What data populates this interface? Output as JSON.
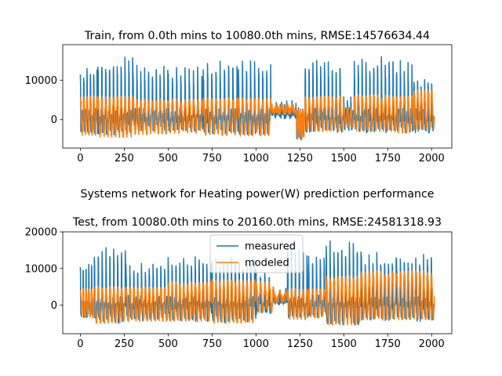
{
  "figure": {
    "suptitle": "Systems network for Heating power(W) prediction performance"
  },
  "chart_data": [
    {
      "type": "line",
      "title": "Train, from 0.0th mins to 10080.0th mins, RMSE:14576634.44",
      "xlabel": "",
      "ylabel": "",
      "xlim": [
        -100,
        2115
      ],
      "ylim": [
        -7200,
        19000
      ],
      "xticks": [
        0,
        250,
        500,
        750,
        1000,
        1250,
        1500,
        1750,
        2000
      ],
      "yticks": [
        0,
        10000
      ],
      "x_range": [
        0,
        2016
      ],
      "grid": false,
      "legend": false,
      "segments": [
        {
          "x0": 0,
          "x1": 100,
          "cycle": 19,
          "m_hi": 14000,
          "m_lo": -3800,
          "p_hi": 6000,
          "p_lo": -4000
        },
        {
          "x0": 100,
          "x1": 300,
          "cycle": 22,
          "m_hi": 16500,
          "m_lo": -4000,
          "p_hi": 6000,
          "p_lo": -4500
        },
        {
          "x0": 300,
          "x1": 500,
          "cycle": 22,
          "m_hi": 14000,
          "m_lo": -3000,
          "p_hi": 5200,
          "p_lo": -3800
        },
        {
          "x0": 500,
          "x1": 700,
          "cycle": 24,
          "m_hi": 13500,
          "m_lo": -3000,
          "p_hi": 5200,
          "p_lo": -3500
        },
        {
          "x0": 700,
          "x1": 900,
          "cycle": 24,
          "m_hi": 15000,
          "m_lo": -3500,
          "p_hi": 5500,
          "p_lo": -4000
        },
        {
          "x0": 900,
          "x1": 1085,
          "cycle": 23,
          "m_hi": 15500,
          "m_lo": -3800,
          "p_hi": 5500,
          "p_lo": -4200
        },
        {
          "x0": 1085,
          "x1": 1230,
          "cycle": 30,
          "m_hi": 5000,
          "m_lo": 1200,
          "p_hi": 4000,
          "p_lo": 1500
        },
        {
          "x0": 1230,
          "x1": 1280,
          "cycle": 12,
          "m_hi": 3000,
          "m_lo": -5800,
          "p_hi": 2500,
          "p_lo": -5000
        },
        {
          "x0": 1280,
          "x1": 1500,
          "cycle": 22,
          "m_hi": 15500,
          "m_lo": -3500,
          "p_hi": 6000,
          "p_lo": -3000
        },
        {
          "x0": 1500,
          "x1": 1560,
          "cycle": 20,
          "m_hi": 6000,
          "m_lo": -3000,
          "p_hi": 3000,
          "p_lo": -2000
        },
        {
          "x0": 1560,
          "x1": 1800,
          "cycle": 22,
          "m_hi": 16000,
          "m_lo": -3500,
          "p_hi": 6500,
          "p_lo": -3000
        },
        {
          "x0": 1800,
          "x1": 1900,
          "cycle": 22,
          "m_hi": 15000,
          "m_lo": -3500,
          "p_hi": 6000,
          "p_lo": -3500
        },
        {
          "x0": 1900,
          "x1": 2016,
          "cycle": 20,
          "m_hi": 11000,
          "m_lo": -3500,
          "p_hi": 7500,
          "p_lo": -2500
        }
      ],
      "series": [
        {
          "name": "measured",
          "color": "#1f77b4"
        },
        {
          "name": "modeled",
          "color": "#ff7f0e"
        }
      ]
    },
    {
      "type": "line",
      "title": "Test, from 10080.0th mins to 20160.0th mins, RMSE:24581318.93",
      "xlabel": "",
      "ylabel": "",
      "xlim": [
        -100,
        2115
      ],
      "ylim": [
        -7800,
        20000
      ],
      "xticks": [
        0,
        250,
        500,
        750,
        1000,
        1250,
        1500,
        1750,
        2000
      ],
      "yticks": [
        0,
        10000,
        20000
      ],
      "x_range": [
        0,
        2016
      ],
      "grid": false,
      "legend": true,
      "legend_position": "top-center",
      "segments": [
        {
          "x0": 0,
          "x1": 80,
          "cycle": 16,
          "m_hi": 12500,
          "m_lo": -3500,
          "p_hi": 4500,
          "p_lo": -3500
        },
        {
          "x0": 80,
          "x1": 260,
          "cycle": 22,
          "m_hi": 16500,
          "m_lo": -5000,
          "p_hi": 5000,
          "p_lo": -5000
        },
        {
          "x0": 260,
          "x1": 500,
          "cycle": 22,
          "m_hi": 11500,
          "m_lo": -4500,
          "p_hi": 5000,
          "p_lo": -4500
        },
        {
          "x0": 500,
          "x1": 750,
          "cycle": 22,
          "m_hi": 13500,
          "m_lo": -4500,
          "p_hi": 6500,
          "p_lo": -4500
        },
        {
          "x0": 750,
          "x1": 1000,
          "cycle": 22,
          "m_hi": 13000,
          "m_lo": -5000,
          "p_hi": 7000,
          "p_lo": -5000
        },
        {
          "x0": 1000,
          "x1": 1100,
          "cycle": 25,
          "m_hi": 10000,
          "m_lo": -2500,
          "p_hi": 6500,
          "p_lo": -2000
        },
        {
          "x0": 1100,
          "x1": 1180,
          "cycle": 35,
          "m_hi": 5000,
          "m_lo": 500,
          "p_hi": 4000,
          "p_lo": 800
        },
        {
          "x0": 1180,
          "x1": 1300,
          "cycle": 22,
          "m_hi": 16500,
          "m_lo": -4000,
          "p_hi": 4500,
          "p_lo": -4000
        },
        {
          "x0": 1300,
          "x1": 1400,
          "cycle": 22,
          "m_hi": 13500,
          "m_lo": -3500,
          "p_hi": 4500,
          "p_lo": -3500
        },
        {
          "x0": 1400,
          "x1": 1600,
          "cycle": 22,
          "m_hi": 17500,
          "m_lo": -5500,
          "p_hi": 8000,
          "p_lo": -5500
        },
        {
          "x0": 1600,
          "x1": 1800,
          "cycle": 22,
          "m_hi": 14500,
          "m_lo": -4500,
          "p_hi": 9500,
          "p_lo": -4000
        },
        {
          "x0": 1800,
          "x1": 2016,
          "cycle": 22,
          "m_hi": 14500,
          "m_lo": -4500,
          "p_hi": 9500,
          "p_lo": -4000
        }
      ],
      "series": [
        {
          "name": "measured",
          "color": "#1f77b4"
        },
        {
          "name": "modeled",
          "color": "#ff7f0e"
        }
      ]
    }
  ]
}
